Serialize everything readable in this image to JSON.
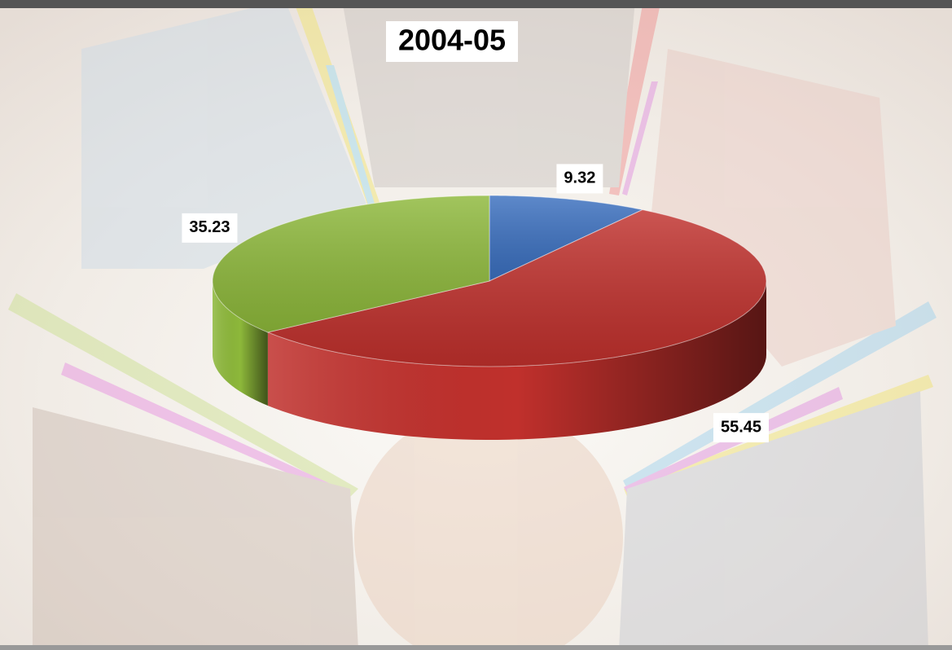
{
  "chart_data": {
    "type": "pie",
    "title": "2004-05",
    "values": [
      9.32,
      55.45,
      35.23
    ],
    "colors": [
      "#3a6fbf",
      "#c0302c",
      "#8db83a"
    ]
  }
}
